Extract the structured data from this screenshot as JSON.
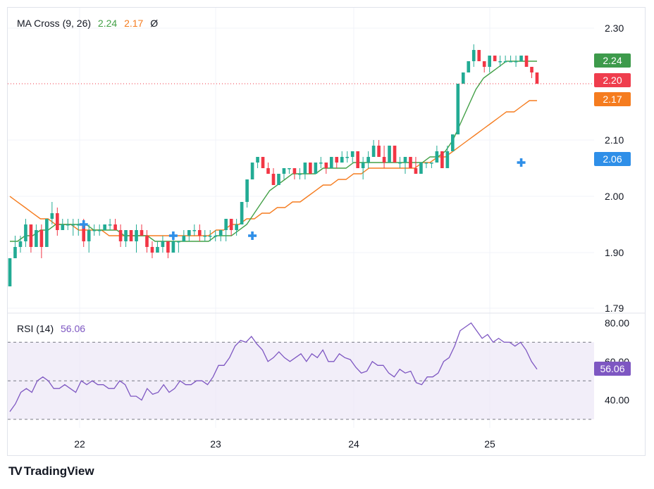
{
  "ma_legend": {
    "title": "MA Cross (9, 26)",
    "fast_value": "2.24",
    "slow_value": "2.17",
    "symbol": "Ø"
  },
  "rsi_legend": {
    "title": "RSI (14)",
    "value": "56.06"
  },
  "price_tags": [
    {
      "label": "2.24",
      "color": "#3d9a4b"
    },
    {
      "label": "2.20",
      "color": "#ef3d4d"
    },
    {
      "label": "2.17",
      "color": "#f57c1f"
    },
    {
      "label": "2.06",
      "color": "#2f8fe8"
    }
  ],
  "rsi_tag": {
    "label": "56.06",
    "color": "#7e57c2"
  },
  "brand": {
    "logo_mark": "TV",
    "name": "TradingView"
  },
  "colors": {
    "up": "#22ab94",
    "down": "#f23645",
    "ma_fast": "#43a047",
    "ma_slow": "#f57c1f",
    "rsi": "#7e57c2",
    "rsi_band": "#ede7f6",
    "cross": "#2f8fe8"
  },
  "chart_data": [
    {
      "type": "candlestick",
      "title": "MA Cross (9, 26)",
      "x_ticks": [
        "22",
        "23",
        "24",
        "25"
      ],
      "y_ticks": [
        "2.30",
        "2.10",
        "2.00",
        "1.90",
        "1.79"
      ],
      "ylim": [
        1.79,
        2.3
      ],
      "last_price_line": 2.2,
      "grid": true,
      "candles": [
        [
          1.84,
          1.89,
          1.84,
          1.89
        ],
        [
          1.89,
          1.93,
          1.89,
          1.91
        ],
        [
          1.91,
          1.93,
          1.9,
          1.92
        ],
        [
          1.92,
          1.96,
          1.91,
          1.95
        ],
        [
          1.95,
          1.95,
          1.9,
          1.91
        ],
        [
          1.91,
          1.95,
          1.91,
          1.94
        ],
        [
          1.94,
          1.95,
          1.89,
          1.91
        ],
        [
          1.91,
          1.96,
          1.91,
          1.96
        ],
        [
          1.96,
          1.99,
          1.95,
          1.97
        ],
        [
          1.97,
          1.98,
          1.93,
          1.94
        ],
        [
          1.94,
          1.96,
          1.94,
          1.95
        ],
        [
          1.95,
          1.96,
          1.94,
          1.95
        ],
        [
          1.95,
          1.96,
          1.93,
          1.95
        ],
        [
          1.95,
          1.96,
          1.93,
          1.95
        ],
        [
          1.95,
          1.96,
          1.91,
          1.92
        ],
        [
          1.92,
          1.95,
          1.9,
          1.94
        ],
        [
          1.94,
          1.95,
          1.93,
          1.94
        ],
        [
          1.94,
          1.95,
          1.93,
          1.94
        ],
        [
          1.94,
          1.95,
          1.94,
          1.95
        ],
        [
          1.95,
          1.96,
          1.94,
          1.95
        ],
        [
          1.95,
          1.96,
          1.94,
          1.94
        ],
        [
          1.94,
          1.95,
          1.91,
          1.92
        ],
        [
          1.92,
          1.94,
          1.91,
          1.94
        ],
        [
          1.94,
          1.94,
          1.92,
          1.92
        ],
        [
          1.92,
          1.95,
          1.9,
          1.94
        ],
        [
          1.94,
          1.95,
          1.93,
          1.93
        ],
        [
          1.93,
          1.94,
          1.9,
          1.91
        ],
        [
          1.91,
          1.92,
          1.89,
          1.9
        ],
        [
          1.9,
          1.92,
          1.9,
          1.91
        ],
        [
          1.91,
          1.93,
          1.9,
          1.92
        ],
        [
          1.92,
          1.92,
          1.89,
          1.9
        ],
        [
          1.9,
          1.93,
          1.9,
          1.92
        ],
        [
          1.92,
          1.92,
          1.9,
          1.92
        ],
        [
          1.92,
          1.94,
          1.92,
          1.93
        ],
        [
          1.93,
          1.94,
          1.92,
          1.94
        ],
        [
          1.94,
          1.95,
          1.93,
          1.94
        ],
        [
          1.94,
          1.95,
          1.92,
          1.93
        ],
        [
          1.93,
          1.94,
          1.92,
          1.93
        ],
        [
          1.93,
          1.94,
          1.92,
          1.93
        ],
        [
          1.93,
          1.94,
          1.92,
          1.93
        ],
        [
          1.93,
          1.94,
          1.92,
          1.94
        ],
        [
          1.94,
          1.96,
          1.92,
          1.96
        ],
        [
          1.96,
          1.96,
          1.93,
          1.94
        ],
        [
          1.94,
          1.96,
          1.93,
          1.95
        ],
        [
          1.95,
          1.99,
          1.95,
          1.99
        ],
        [
          1.99,
          2.03,
          1.98,
          2.03
        ],
        [
          2.03,
          2.06,
          2.03,
          2.06
        ],
        [
          2.06,
          2.07,
          2.05,
          2.07
        ],
        [
          2.07,
          2.07,
          2.05,
          2.05
        ],
        [
          2.05,
          2.06,
          2.04,
          2.04
        ],
        [
          2.04,
          2.05,
          2.02,
          2.02
        ],
        [
          2.02,
          2.04,
          2.02,
          2.04
        ],
        [
          2.04,
          2.05,
          2.03,
          2.05
        ],
        [
          2.05,
          2.05,
          2.04,
          2.05
        ],
        [
          2.05,
          2.05,
          2.03,
          2.04
        ],
        [
          2.04,
          2.05,
          2.03,
          2.04
        ],
        [
          2.04,
          2.06,
          2.03,
          2.06
        ],
        [
          2.06,
          2.06,
          2.04,
          2.04
        ],
        [
          2.04,
          2.06,
          2.04,
          2.06
        ],
        [
          2.06,
          2.07,
          2.05,
          2.06
        ],
        [
          2.06,
          2.06,
          2.04,
          2.05
        ],
        [
          2.05,
          2.07,
          2.05,
          2.07
        ],
        [
          2.07,
          2.07,
          2.05,
          2.06
        ],
        [
          2.06,
          2.08,
          2.06,
          2.07
        ],
        [
          2.07,
          2.08,
          2.06,
          2.07
        ],
        [
          2.07,
          2.08,
          2.06,
          2.08
        ],
        [
          2.08,
          2.08,
          2.05,
          2.05
        ],
        [
          2.05,
          2.07,
          2.03,
          2.06
        ],
        [
          2.06,
          2.08,
          2.05,
          2.07
        ],
        [
          2.07,
          2.1,
          2.07,
          2.09
        ],
        [
          2.09,
          2.1,
          2.07,
          2.07
        ],
        [
          2.07,
          2.09,
          2.05,
          2.06
        ],
        [
          2.06,
          2.09,
          2.06,
          2.09
        ],
        [
          2.09,
          2.09,
          2.06,
          2.06
        ],
        [
          2.06,
          2.07,
          2.05,
          2.06
        ],
        [
          2.06,
          2.07,
          2.04,
          2.07
        ],
        [
          2.07,
          2.07,
          2.05,
          2.05
        ],
        [
          2.05,
          2.07,
          2.04,
          2.04
        ],
        [
          2.04,
          2.06,
          2.04,
          2.06
        ],
        [
          2.06,
          2.06,
          2.05,
          2.06
        ],
        [
          2.06,
          2.06,
          2.05,
          2.06
        ],
        [
          2.06,
          2.09,
          2.06,
          2.08
        ],
        [
          2.08,
          2.08,
          2.05,
          2.05
        ],
        [
          2.05,
          2.09,
          2.05,
          2.08
        ],
        [
          2.08,
          2.11,
          2.08,
          2.11
        ],
        [
          2.11,
          2.2,
          2.11,
          2.2
        ],
        [
          2.2,
          2.22,
          2.2,
          2.22
        ],
        [
          2.22,
          2.24,
          2.22,
          2.24
        ],
        [
          2.24,
          2.27,
          2.23,
          2.26
        ],
        [
          2.26,
          2.26,
          2.24,
          2.24
        ],
        [
          2.24,
          2.24,
          2.22,
          2.23
        ],
        [
          2.23,
          2.25,
          2.22,
          2.25
        ],
        [
          2.25,
          2.25,
          2.24,
          2.24
        ],
        [
          2.24,
          2.25,
          2.23,
          2.24
        ],
        [
          2.24,
          2.25,
          2.24,
          2.24
        ],
        [
          2.24,
          2.25,
          2.24,
          2.24
        ],
        [
          2.24,
          2.25,
          2.23,
          2.24
        ],
        [
          2.24,
          2.25,
          2.24,
          2.25
        ],
        [
          2.25,
          2.25,
          2.23,
          2.23
        ],
        [
          2.23,
          2.23,
          2.21,
          2.22
        ],
        [
          2.22,
          2.22,
          2.2,
          2.2
        ]
      ],
      "ma_fast": [
        1.92,
        1.92,
        1.93,
        1.93,
        1.94,
        1.94,
        1.95,
        1.95,
        1.95,
        1.95,
        1.95,
        1.94,
        1.94,
        1.94,
        1.94,
        1.93,
        1.93,
        1.93,
        1.93,
        1.92,
        1.92,
        1.92,
        1.92,
        1.92,
        1.92,
        1.92,
        1.92,
        1.93,
        1.93,
        1.93,
        1.94,
        1.95,
        1.97,
        1.99,
        2.01,
        2.02,
        2.03,
        2.04,
        2.04,
        2.04,
        2.04,
        2.05,
        2.05,
        2.05,
        2.05,
        2.06,
        2.06,
        2.06,
        2.06,
        2.06,
        2.06,
        2.06,
        2.06,
        2.06,
        2.06,
        2.07,
        2.07,
        2.08,
        2.1,
        2.13,
        2.16,
        2.19,
        2.21,
        2.22,
        2.23,
        2.24,
        2.24,
        2.24,
        2.24,
        2.24
      ],
      "ma_slow": [
        2.0,
        1.99,
        1.98,
        1.97,
        1.96,
        1.96,
        1.95,
        1.95,
        1.95,
        1.94,
        1.94,
        1.94,
        1.94,
        1.93,
        1.93,
        1.93,
        1.93,
        1.93,
        1.93,
        1.93,
        1.93,
        1.93,
        1.93,
        1.93,
        1.93,
        1.93,
        1.93,
        1.94,
        1.94,
        1.95,
        1.95,
        1.96,
        1.96,
        1.97,
        1.97,
        1.98,
        1.98,
        1.99,
        1.99,
        2.0,
        2.01,
        2.02,
        2.02,
        2.03,
        2.03,
        2.04,
        2.04,
        2.05,
        2.05,
        2.05,
        2.05,
        2.05,
        2.05,
        2.05,
        2.06,
        2.06,
        2.07,
        2.07,
        2.08,
        2.09,
        2.1,
        2.11,
        2.12,
        2.13,
        2.14,
        2.15,
        2.15,
        2.16,
        2.17,
        2.17
      ],
      "crosses": [
        {
          "index": 14,
          "price": 1.95
        },
        {
          "index": 31,
          "price": 1.93
        },
        {
          "index": 46,
          "price": 1.93
        },
        {
          "index": 97,
          "price": 2.06
        }
      ]
    },
    {
      "type": "line",
      "title": "RSI (14)",
      "y_ticks": [
        "80.00",
        "60.00",
        "40.00"
      ],
      "ylim": [
        30,
        80
      ],
      "band": [
        30,
        70
      ],
      "midline": 50,
      "values": [
        34,
        38,
        44,
        46,
        44,
        50,
        52,
        50,
        46,
        46,
        48,
        46,
        44,
        50,
        48,
        50,
        48,
        48,
        46,
        46,
        50,
        48,
        42,
        42,
        40,
        46,
        43,
        44,
        48,
        44,
        46,
        50,
        48,
        48,
        50,
        50,
        48,
        52,
        58,
        58,
        62,
        68,
        71,
        70,
        73,
        69,
        66,
        60,
        62,
        65,
        62,
        60,
        62,
        64,
        60,
        64,
        62,
        66,
        60,
        60,
        64,
        62,
        61,
        57,
        54,
        55,
        60,
        58,
        58,
        54,
        52,
        56,
        54,
        55,
        49,
        48,
        52,
        52,
        54,
        60,
        62,
        68,
        76,
        78,
        80,
        76,
        72,
        74,
        70,
        72,
        70,
        70,
        68,
        70,
        66,
        60,
        56
      ]
    }
  ]
}
